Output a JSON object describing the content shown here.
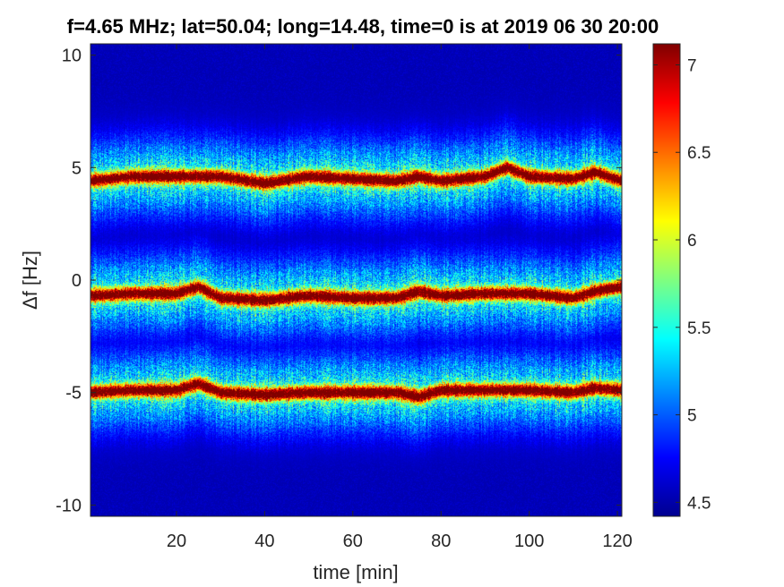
{
  "chart_data": {
    "type": "heatmap",
    "title": "f=4.65 MHz;  lat=50.04; long=14.48, time=0 is at 2019 06 30 20:00",
    "xlabel": "time [min]",
    "ylabel": "Δf [Hz]",
    "xlim": [
      0.5,
      121
    ],
    "ylim": [
      -10.5,
      10.5
    ],
    "x_ticks": [
      20,
      40,
      60,
      80,
      100,
      120
    ],
    "y_ticks": [
      -10,
      -5,
      0,
      5,
      10
    ],
    "colormap": "jet",
    "colorbar": {
      "range": [
        4.42,
        7.12
      ],
      "ticks": [
        4.5,
        5,
        5.5,
        6,
        6.5,
        7
      ]
    },
    "background_level": 4.55,
    "bands": [
      {
        "center_x": [
          0,
          10,
          20,
          30,
          40,
          50,
          60,
          70,
          75,
          80,
          90,
          95,
          100,
          110,
          115,
          121
        ],
        "center_y": [
          4.4,
          4.6,
          4.6,
          4.6,
          4.3,
          4.6,
          4.5,
          4.4,
          4.6,
          4.4,
          4.6,
          5.0,
          4.6,
          4.5,
          4.8,
          4.4
        ],
        "peak": 7.0,
        "core_width_hz": 0.2,
        "halo_width_hz": 1.2
      },
      {
        "center_x": [
          0,
          10,
          20,
          25,
          30,
          40,
          50,
          60,
          70,
          75,
          80,
          90,
          100,
          110,
          115,
          121
        ],
        "center_y": [
          -0.7,
          -0.6,
          -0.6,
          -0.3,
          -0.8,
          -0.9,
          -0.7,
          -0.8,
          -0.8,
          -0.5,
          -0.7,
          -0.6,
          -0.6,
          -0.8,
          -0.5,
          -0.3
        ],
        "peak": 7.0,
        "core_width_hz": 0.2,
        "halo_width_hz": 1.2
      },
      {
        "center_x": [
          0,
          10,
          20,
          25,
          30,
          40,
          50,
          60,
          70,
          75,
          80,
          90,
          100,
          110,
          115,
          121
        ],
        "center_y": [
          -5.0,
          -4.9,
          -4.9,
          -4.6,
          -5.0,
          -5.1,
          -5.0,
          -5.0,
          -5.0,
          -5.2,
          -4.9,
          -4.9,
          -4.9,
          -5.0,
          -4.8,
          -4.9
        ],
        "peak": 7.0,
        "core_width_hz": 0.2,
        "halo_width_hz": 1.2
      }
    ]
  }
}
